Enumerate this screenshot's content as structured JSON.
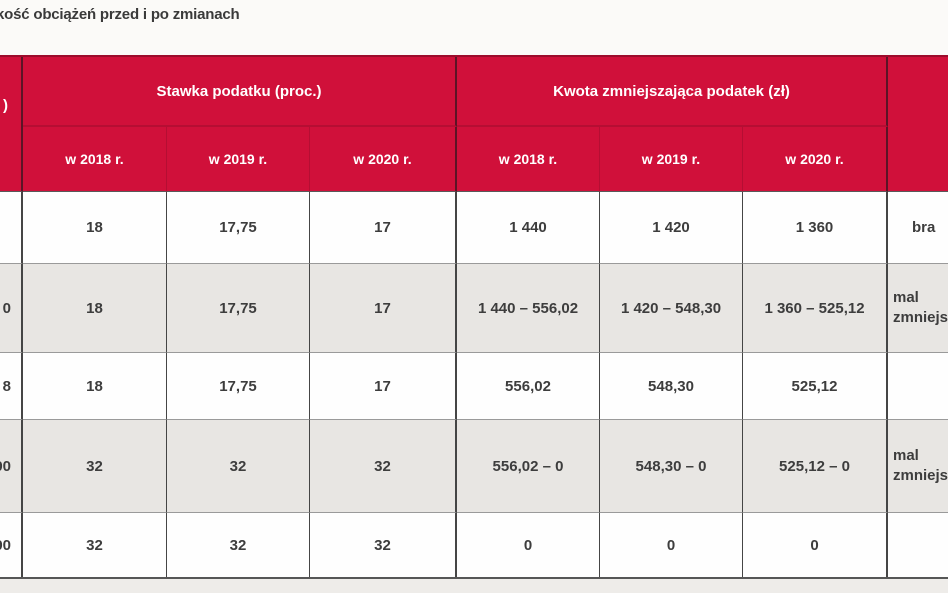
{
  "page": {
    "title_fragment": "kość obciążeń przed i po zmianach"
  },
  "theme": {
    "header_red": "#d0103a",
    "header_divider": "#b50e33",
    "group_border": "#5c1426",
    "row_alt": "#e8e6e3",
    "border_dark": "#454545",
    "border_light": "#9a9a9a",
    "page_top": "#fbfaf8",
    "page_bottom": "#eeece9",
    "text": "#3d3d3d"
  },
  "table": {
    "corner_header_fragment": ")",
    "group_headers": [
      "Stawka podatku (proc.)",
      "Kwota zmniejszająca podatek (zł)"
    ],
    "year_headers": [
      "w 2018 r.",
      "w 2019 r.",
      "w 2020 r.",
      "w 2018 r.",
      "w 2019 r.",
      "w 2020 r."
    ],
    "rows": [
      {
        "base_fragment": "",
        "stawka": [
          "18",
          "17,75",
          "17"
        ],
        "kwota": [
          "1 440",
          "1 420",
          "1 360"
        ],
        "note_fragment": "bra"
      },
      {
        "base_fragment": "0",
        "stawka": [
          "18",
          "17,75",
          "17"
        ],
        "kwota": [
          "1 440 – 556,02",
          "1 420 – 548,30",
          "1 360 – 525,12"
        ],
        "note_fragment": "mal\nzmniejs"
      },
      {
        "base_fragment": "8",
        "stawka": [
          "18",
          "17,75",
          "17"
        ],
        "kwota": [
          "556,02",
          "548,30",
          "525,12"
        ],
        "note_fragment": ""
      },
      {
        "base_fragment": "00",
        "stawka": [
          "32",
          "32",
          "32"
        ],
        "kwota": [
          "556,02 – 0",
          "548,30 – 0",
          "525,12 – 0"
        ],
        "note_fragment": "mal\nzmniejs"
      },
      {
        "base_fragment": "00",
        "stawka": [
          "32",
          "32",
          "32"
        ],
        "kwota": [
          "0",
          "0",
          "0"
        ],
        "note_fragment": ""
      }
    ]
  }
}
